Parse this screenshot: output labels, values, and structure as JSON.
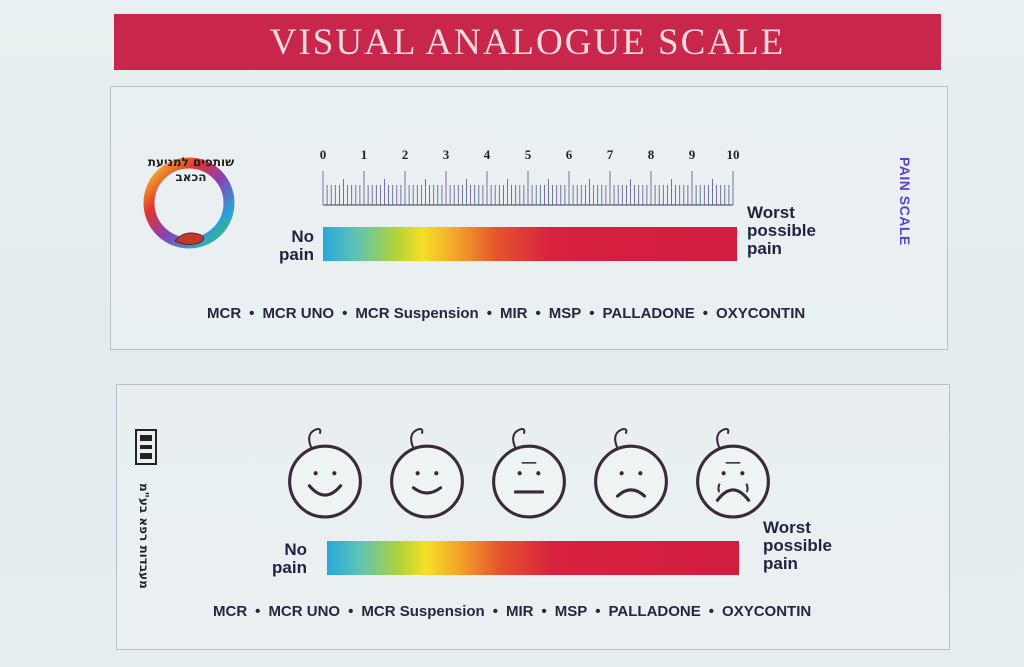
{
  "title": "VISUAL ANALOGUE SCALE",
  "top_card": {
    "logo_text": "שותפים למניעת הכאב",
    "scale_numbers": [
      "0",
      "1",
      "2",
      "3",
      "4",
      "5",
      "6",
      "7",
      "8",
      "9",
      "10"
    ],
    "no_pain": "No pain",
    "worst": "Worst possible pain",
    "side_label": "PAIN SCALE",
    "drugs": [
      "MCR",
      "MCR UNO",
      "MCR Suspension",
      "MIR",
      "MSP",
      "PALLADONE",
      "OXYCONTIN"
    ]
  },
  "bottom_card": {
    "side_text": "מעבדות רפא בע\"מ",
    "no_pain": "No pain",
    "worst": "Worst possible pain",
    "faces": [
      "big-smile",
      "smile",
      "neutral",
      "frown",
      "crying"
    ],
    "drugs": [
      "MCR",
      "MCR UNO",
      "MCR Suspension",
      "MIR",
      "MSP",
      "PALLADONE",
      "OXYCONTIN"
    ]
  },
  "colors": {
    "banner": "#c8264a",
    "pain_scale_label": "#5b43c7",
    "gradient": [
      "#27a8d8",
      "#f6e027",
      "#d21c40"
    ]
  }
}
